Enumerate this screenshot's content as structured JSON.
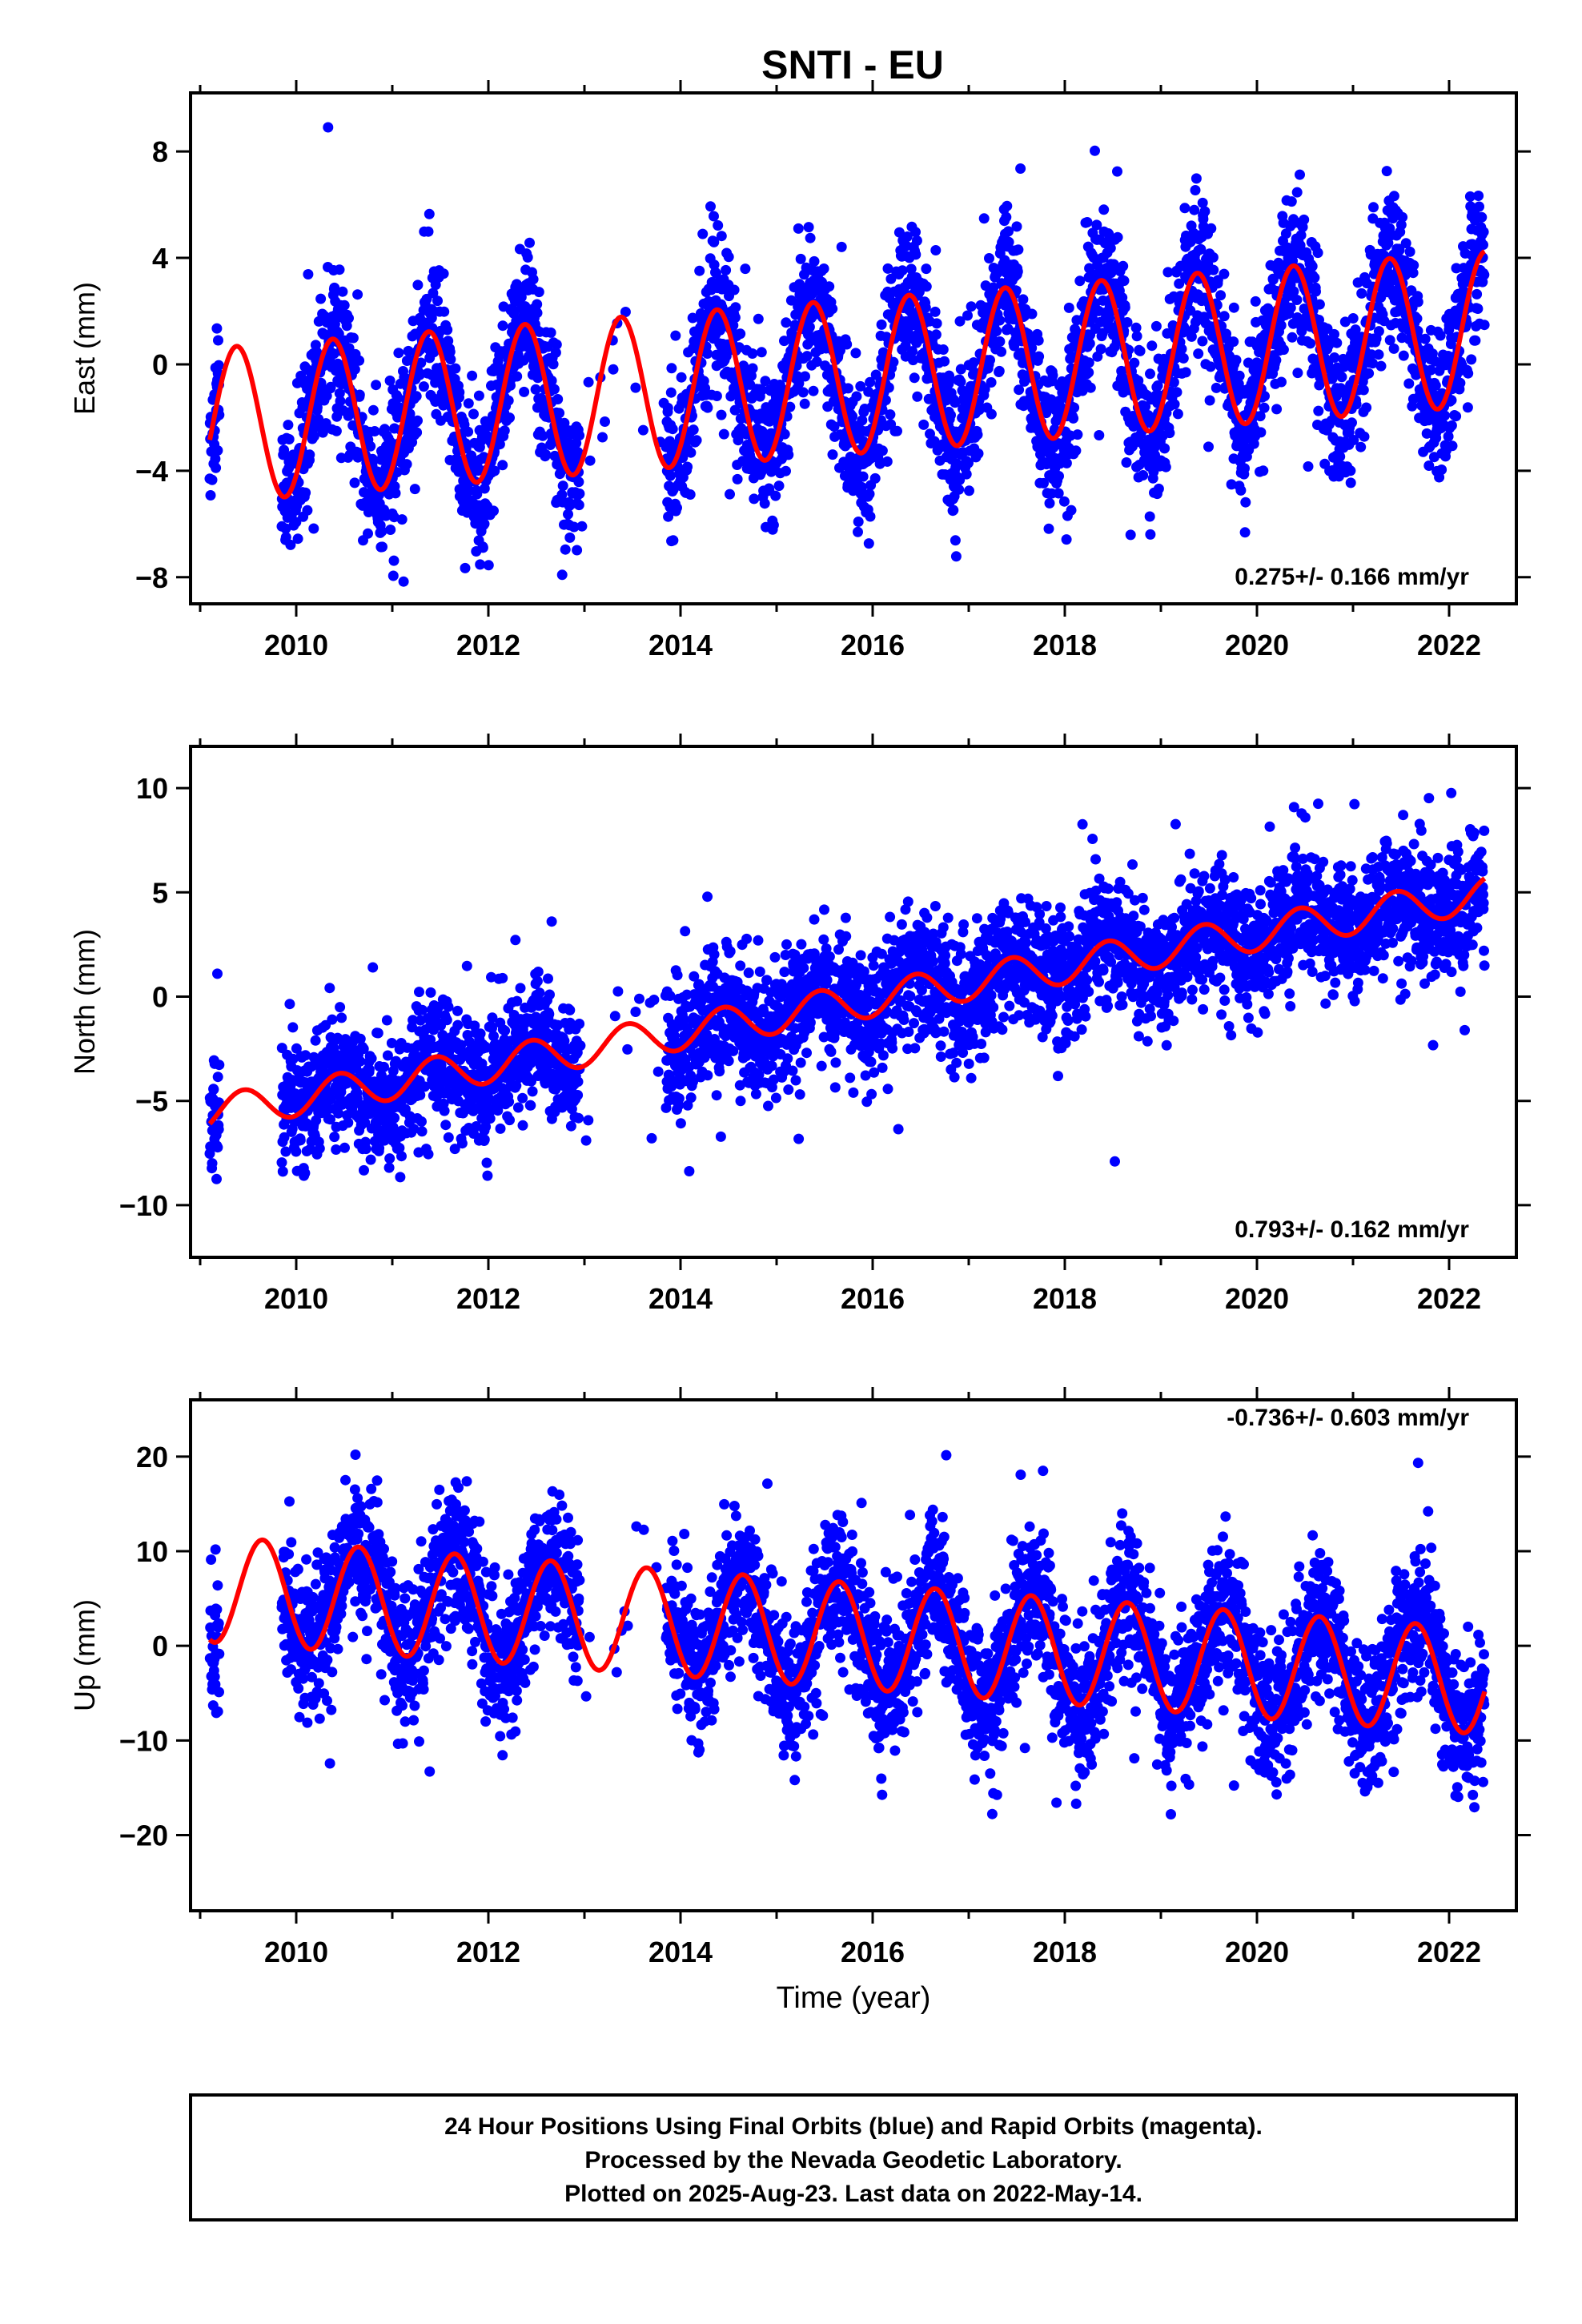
{
  "title": "SNTI - EU",
  "colors": {
    "points": "#0000ff",
    "fit": "#ff0000",
    "frame": "#000000"
  },
  "xlabel": "Time (year)",
  "footer": {
    "line1": "24 Hour Positions Using Final Orbits (blue) and Rapid Orbits (magenta).",
    "line2": "Processed by the Nevada Geodetic Laboratory.",
    "line3": "Plotted on 2025-Aug-23. Last data on 2022-May-14."
  },
  "chart_data": [
    {
      "type": "scatter",
      "component": "east",
      "ylabel": "East (mm)",
      "rate_label": "0.275+/- 0.166 mm/yr",
      "xlim": [
        2008.9,
        2022.7
      ],
      "ylim": [
        -9,
        10.2
      ],
      "x_ticks": [
        2010,
        2012,
        2014,
        2016,
        2018,
        2020,
        2022
      ],
      "y_ticks": [
        -8,
        -4,
        0,
        4,
        8
      ],
      "data_range": [
        2009.1,
        2022.37
      ],
      "gap": [
        2012.95,
        2013.85
      ],
      "fit": {
        "offset_at_2009": -2.3,
        "rate_mm_per_yr": 0.275,
        "annual_amp": 2.9,
        "semiannual_amp": 0.0,
        "phase_peak_year_fraction": 0.38
      },
      "noise_sigma": 1.4,
      "series": [
        {
          "name": "Final Orbits",
          "color": "#0000ff"
        },
        {
          "name": "fit",
          "color": "#ff0000"
        }
      ]
    },
    {
      "type": "scatter",
      "component": "north",
      "ylabel": "North (mm)",
      "rate_label": "0.793+/- 0.162 mm/yr",
      "xlim": [
        2008.9,
        2022.7
      ],
      "ylim": [
        -12.5,
        12
      ],
      "x_ticks": [
        2010,
        2012,
        2014,
        2016,
        2018,
        2020,
        2022
      ],
      "y_ticks": [
        -10,
        -5,
        0,
        5,
        10
      ],
      "data_range": [
        2009.1,
        2022.37
      ],
      "gap": [
        2012.95,
        2013.85
      ],
      "fit": {
        "offset_at_2009": -5.6,
        "rate_mm_per_yr": 0.793,
        "annual_amp": 0.85,
        "semiannual_amp": 0.0,
        "phase_peak_year_fraction": 0.45
      },
      "noise_sigma": 1.5,
      "series": [
        {
          "name": "Final Orbits",
          "color": "#0000ff"
        },
        {
          "name": "fit",
          "color": "#ff0000"
        }
      ]
    },
    {
      "type": "scatter",
      "component": "up",
      "ylabel": "Up (mm)",
      "rate_label": "-0.736+/- 0.603 mm/yr",
      "xlim": [
        2008.9,
        2022.7
      ],
      "ylim": [
        -28,
        26
      ],
      "x_ticks": [
        2010,
        2012,
        2014,
        2016,
        2018,
        2020,
        2022
      ],
      "y_ticks": [
        -20,
        -10,
        0,
        10,
        20
      ],
      "data_range": [
        2009.1,
        2022.37
      ],
      "gap": [
        2012.95,
        2013.85
      ],
      "fit": {
        "offset_at_2009": 6.0,
        "rate_mm_per_yr": -0.736,
        "annual_amp": 5.6,
        "semiannual_amp": 0.0,
        "phase_peak_year_fraction": 0.65
      },
      "noise_sigma": 3.8,
      "series": [
        {
          "name": "Final Orbits",
          "color": "#0000ff"
        },
        {
          "name": "fit",
          "color": "#ff0000"
        }
      ]
    }
  ]
}
